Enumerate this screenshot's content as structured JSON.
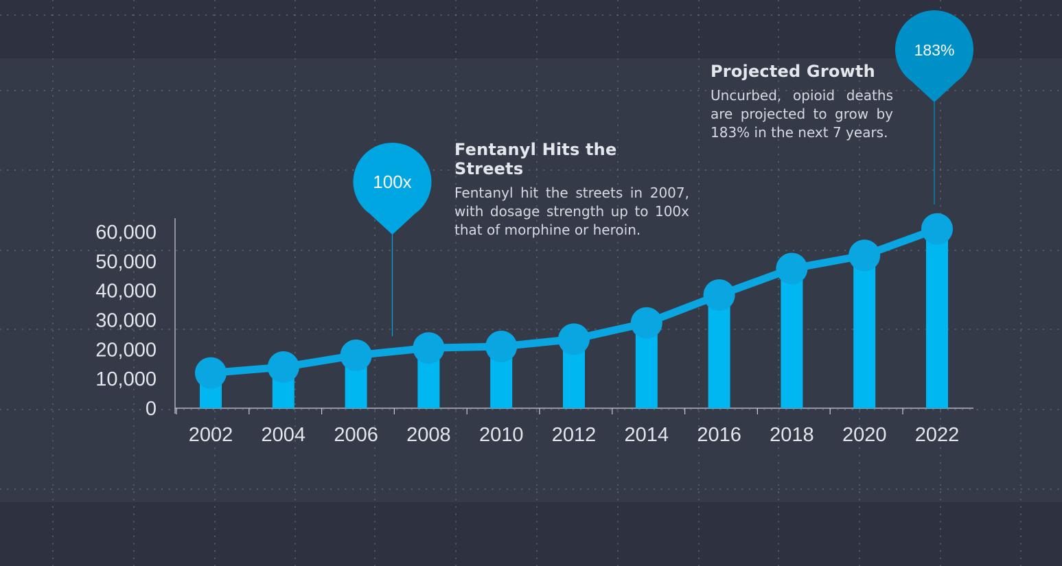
{
  "chart_data": {
    "type": "bar",
    "x": [
      2002,
      2004,
      2006,
      2008,
      2010,
      2012,
      2014,
      2016,
      2018,
      2020,
      2022
    ],
    "values": [
      12000,
      14000,
      18000,
      20500,
      21000,
      23500,
      29000,
      38500,
      47500,
      52000,
      61000
    ],
    "line_overlay": true,
    "ylim": [
      0,
      60000
    ],
    "yticks": [
      0,
      10000,
      20000,
      30000,
      40000,
      50000,
      60000
    ],
    "ytick_labels": [
      "0",
      "10,000",
      "20,000",
      "30,000",
      "40,000",
      "50,000",
      "60,000"
    ],
    "xtick_labels": [
      "2002",
      "2004",
      "2006",
      "2008",
      "2010",
      "2012",
      "2014",
      "2016",
      "2018",
      "2020",
      "2022"
    ],
    "title": "",
    "xlabel": "",
    "ylabel": "",
    "colors": {
      "bar": "#00b7f1",
      "line": "#0aa6e2",
      "marker": "#0aa6e2",
      "pin_left": "#00a6e2",
      "pin_right": "#0090c8",
      "axis": "#c9cdd4",
      "background": "#353a48",
      "background_band": "#2e3240",
      "grid_dots": "#6c7282"
    },
    "annotations": [
      {
        "id": "fentanyl",
        "badge": "100x",
        "x": 2007,
        "heading": "Fentanyl Hits the Streets",
        "text": "Fentanyl hit the streets in 2007, with dosage strength up to 100x that of morphine or heroin."
      },
      {
        "id": "growth",
        "badge": "183%",
        "x": 2022,
        "heading": "Projected Growth",
        "text": "Uncurbed, opioid deaths are projected to grow by 183% in the next 7 years."
      }
    ]
  }
}
